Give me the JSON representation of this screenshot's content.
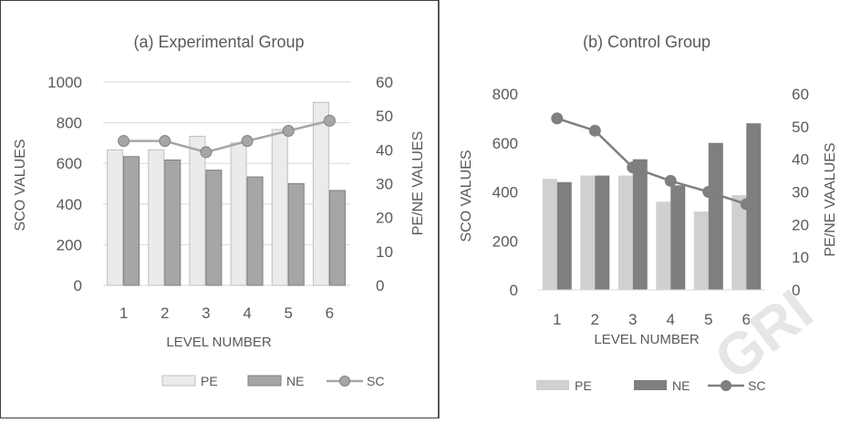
{
  "colors": {
    "background": "#ffffff",
    "panel_border": "#404040",
    "gridline": "#d9d9d9",
    "text": "#595959",
    "a_pe": "#ebebeb",
    "a_pe_stroke": "#bfbfbf",
    "a_ne": "#a6a6a6",
    "a_ne_stroke": "#7f7f7f",
    "a_sc": "#a6a6a6",
    "a_sc_stroke": "#7f7f7f",
    "b_pe": "#d0d0d0",
    "b_ne": "#7f7f7f",
    "b_sc": "#7f7f7f",
    "watermark": "#e6e6e6"
  },
  "watermark": {
    "text": "GRI"
  },
  "chart_data": [
    {
      "type": "bar",
      "title": "(a) Experimental Group",
      "xlabel": "LEVEL NUMBER",
      "ylabel": "SCO VALUES",
      "y2label": "PE/NE VALUES",
      "categories": [
        "1",
        "2",
        "3",
        "4",
        "5",
        "6"
      ],
      "ylim": [
        0,
        1000
      ],
      "yticks": [
        "0",
        "200",
        "400",
        "600",
        "800",
        "1000"
      ],
      "y2lim": [
        0,
        60
      ],
      "y2ticks": [
        "0",
        "10",
        "20",
        "30",
        "40",
        "50",
        "60"
      ],
      "grid": true,
      "legend_position": "bottom",
      "series": [
        {
          "name": "PE",
          "type": "bar",
          "axis": "right",
          "values": [
            40,
            40,
            44,
            42,
            46,
            54
          ]
        },
        {
          "name": "NE",
          "type": "bar",
          "axis": "right",
          "values": [
            38,
            37,
            34,
            32,
            30,
            28
          ]
        },
        {
          "name": "SC",
          "type": "line",
          "axis": "left",
          "values": [
            710,
            710,
            655,
            710,
            760,
            810
          ]
        }
      ]
    },
    {
      "type": "bar",
      "title": "(b) Control Group",
      "xlabel": "LEVEL NUMBER",
      "ylabel": "SCO VALUES",
      "y2label": "PE/NE VAALUES",
      "categories": [
        "1",
        "2",
        "3",
        "4",
        "5",
        "6"
      ],
      "ylim": [
        0,
        800
      ],
      "yticks": [
        "0",
        "200",
        "400",
        "600",
        "800"
      ],
      "y2lim": [
        0,
        60
      ],
      "y2ticks": [
        "0",
        "10",
        "20",
        "30",
        "40",
        "50",
        "60"
      ],
      "grid": false,
      "legend_position": "bottom",
      "series": [
        {
          "name": "PE",
          "type": "bar",
          "axis": "right",
          "values": [
            34,
            35,
            35,
            27,
            24,
            29
          ]
        },
        {
          "name": "NE",
          "type": "bar",
          "axis": "right",
          "values": [
            33,
            35,
            40,
            32,
            45,
            51
          ]
        },
        {
          "name": "SC",
          "type": "line",
          "axis": "left",
          "values": [
            700,
            650,
            500,
            445,
            400,
            350
          ]
        }
      ]
    }
  ]
}
